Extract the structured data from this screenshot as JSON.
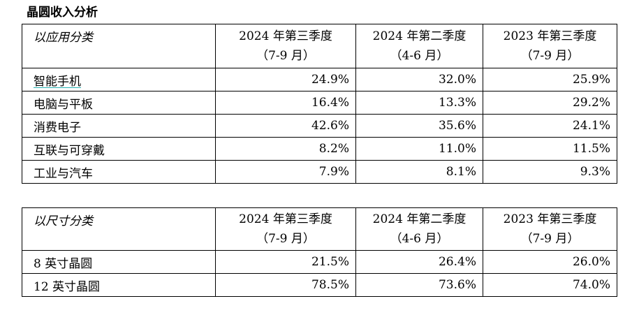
{
  "title": "晶圆收入分析",
  "by_application": {
    "category_header": "以应用分类",
    "periods": [
      {
        "line1": "2024 年第三季度",
        "line2": "（7-9 月）"
      },
      {
        "line1": "2024 年第二季度",
        "line2": "（4-6 月）"
      },
      {
        "line1": "2023 年第三季度",
        "line2": "（7-9 月）"
      }
    ],
    "rows": [
      {
        "label": "智能手机",
        "values": [
          "24.9%",
          "32.0%",
          "25.9%"
        ]
      },
      {
        "label": "电脑与平板",
        "values": [
          "16.4%",
          "13.3%",
          "29.2%"
        ]
      },
      {
        "label": "消费电子",
        "values": [
          "42.6%",
          "35.6%",
          "24.1%"
        ]
      },
      {
        "label": "互联与可穿戴",
        "values": [
          "8.2%",
          "11.0%",
          "11.5%"
        ]
      },
      {
        "label": "工业与汽车",
        "values": [
          "7.9%",
          "8.1%",
          "9.3%"
        ]
      }
    ]
  },
  "by_size": {
    "category_header": "以尺寸分类",
    "periods": [
      {
        "line1": "2024 年第三季度",
        "line2": "（7-9 月）"
      },
      {
        "line1": "2024 年第二季度",
        "line2": "（4-6 月）"
      },
      {
        "line1": "2023 年第三季度",
        "line2": "（7-9 月）"
      }
    ],
    "rows": [
      {
        "label": "8 英寸晶圆",
        "values": [
          "21.5%",
          "26.4%",
          "26.0%"
        ]
      },
      {
        "label": "12 英寸晶圆",
        "values": [
          "78.5%",
          "73.6%",
          "74.0%"
        ]
      }
    ]
  },
  "colors": {
    "underline_accent": "#2ab3b3"
  }
}
